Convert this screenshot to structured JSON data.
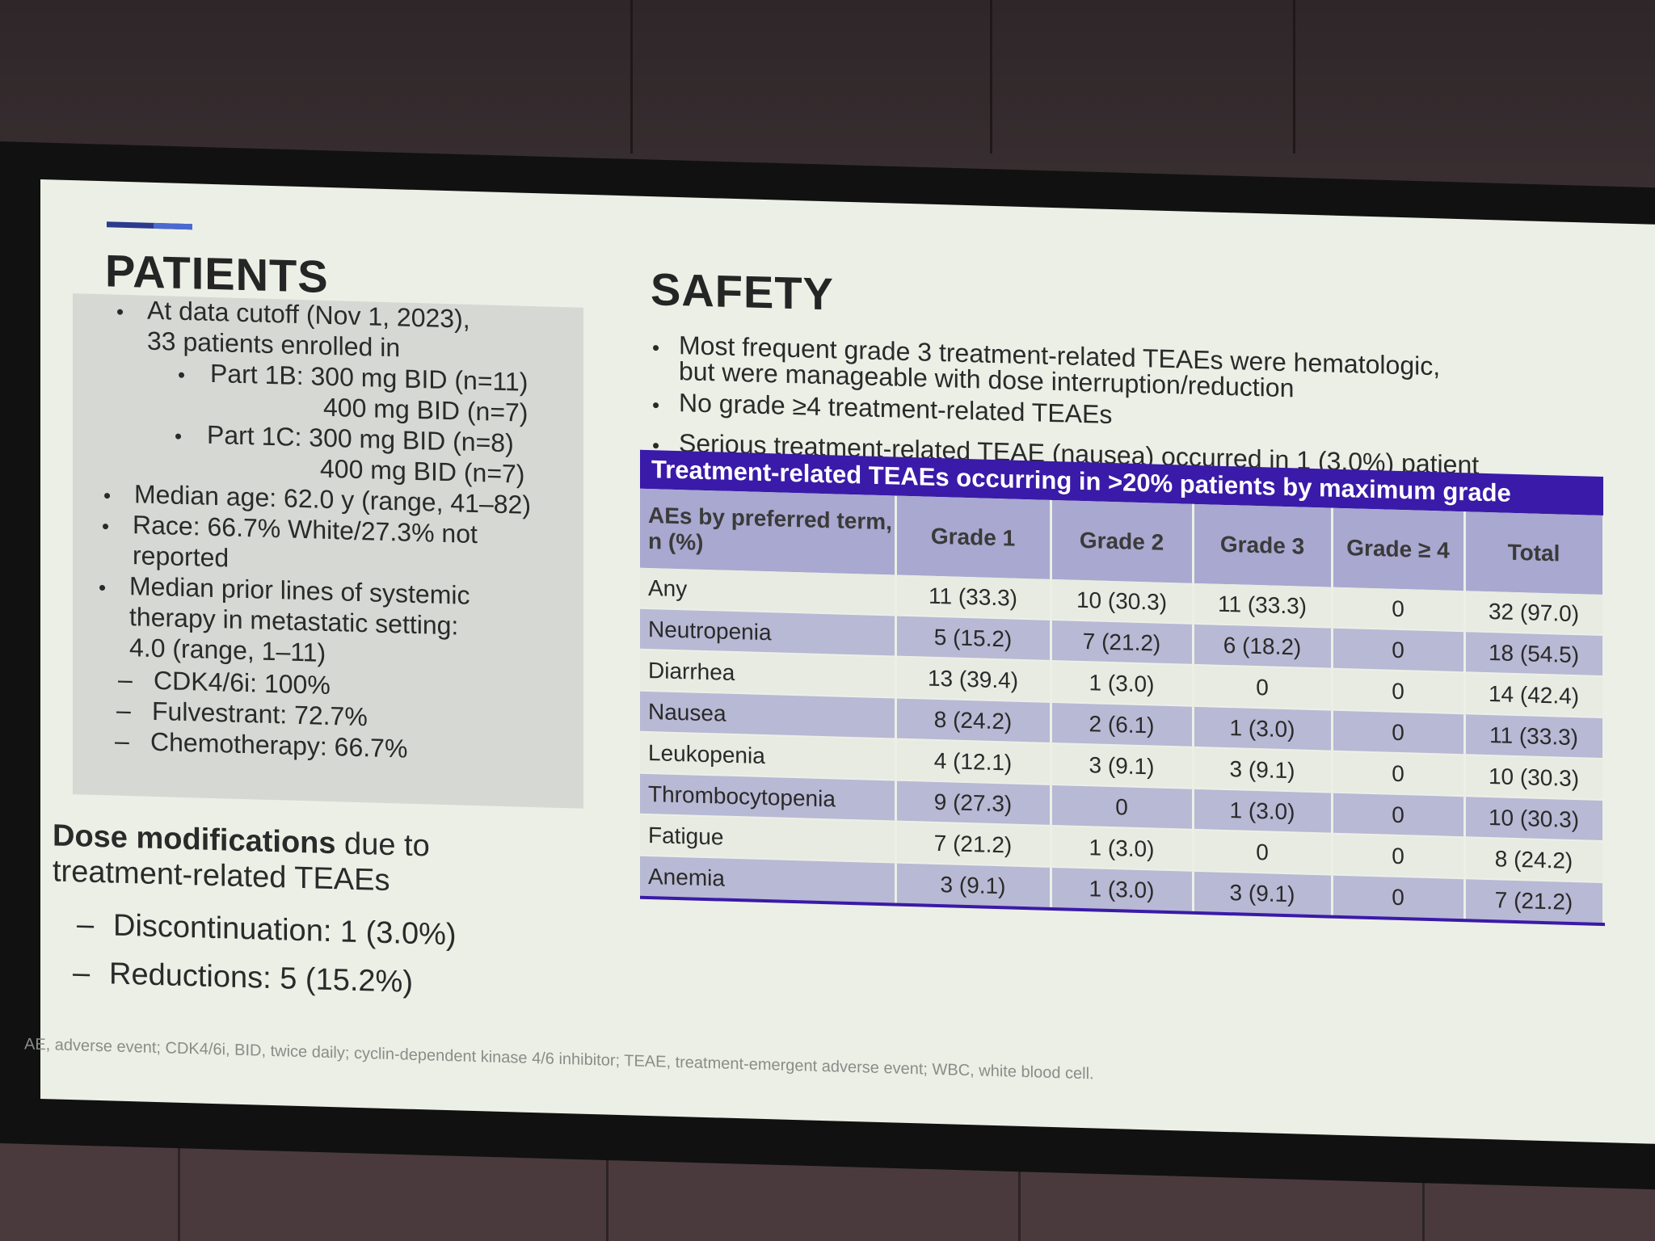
{
  "patients": {
    "title": "PATIENTS",
    "lines": [
      "At data cutoff (Nov 1, 2023),",
      "33 patients enrolled in",
      "Part 1B: 300 mg BID (n=11)",
      "400 mg BID (n=7)",
      "Part 1C: 300 mg BID (n=8)",
      "400 mg BID (n=7)",
      "Median age: 62.0 y (range, 41–82)",
      "Race: 66.7% White/27.3% not",
      "reported",
      "Median prior lines of systemic",
      "therapy in metastatic setting:",
      "4.0 (range, 1–11)",
      "CDK4/6i: 100%",
      "Fulvestrant: 72.7%",
      "Chemotherapy: 66.7%"
    ],
    "bullet": "•",
    "dash": "–"
  },
  "dose": {
    "title_bold": "Dose modifications",
    "title_rest": " due to",
    "title_line2": "treatment-related TEAEs",
    "items": [
      "Discontinuation: 1 (3.0%)",
      "Reductions: 5 (15.2%)"
    ]
  },
  "safety": {
    "title": "SAFETY",
    "lines": [
      "Most frequent grade 3 treatment-related TEAEs were hematologic,",
      "but were manageable with dose interruption/reduction",
      "No grade ≥4 treatment-related TEAEs",
      "Serious treatment-related TEAE (nausea) occurred in 1 (3.0%) patient"
    ]
  },
  "table": {
    "title": "Treatment-related TEAEs occurring in >20% patients by maximum grade",
    "headers": [
      "AEs by preferred term, n (%)",
      "Grade 1",
      "Grade 2",
      "Grade 3",
      "Grade ≥ 4",
      "Total"
    ],
    "rows": [
      [
        "Any",
        "11 (33.3)",
        "10 (30.3)",
        "11 (33.3)",
        "0",
        "32 (97.0)"
      ],
      [
        "Neutropenia",
        "5 (15.2)",
        "7 (21.2)",
        "6 (18.2)",
        "0",
        "18 (54.5)"
      ],
      [
        "Diarrhea",
        "13 (39.4)",
        "1 (3.0)",
        "0",
        "0",
        "14 (42.4)"
      ],
      [
        "Nausea",
        "8 (24.2)",
        "2 (6.1)",
        "1 (3.0)",
        "0",
        "11 (33.3)"
      ],
      [
        "Leukopenia",
        "4 (12.1)",
        "3 (9.1)",
        "3 (9.1)",
        "0",
        "10 (30.3)"
      ],
      [
        "Thrombocytopenia",
        "9 (27.3)",
        "0",
        "1 (3.0)",
        "0",
        "10 (30.3)"
      ],
      [
        "Fatigue",
        "7 (21.2)",
        "1 (3.0)",
        "0",
        "0",
        "8 (24.2)"
      ],
      [
        "Anemia",
        "3 (9.1)",
        "1 (3.0)",
        "3 (9.1)",
        "0",
        "7 (21.2)"
      ]
    ]
  },
  "footnote": "AE, adverse event; CDK4/6i, BID, twice daily; cyclin-dependent kinase 4/6 inhibitor; TEAE, treatment-emergent adverse event; WBC, white blood cell."
}
